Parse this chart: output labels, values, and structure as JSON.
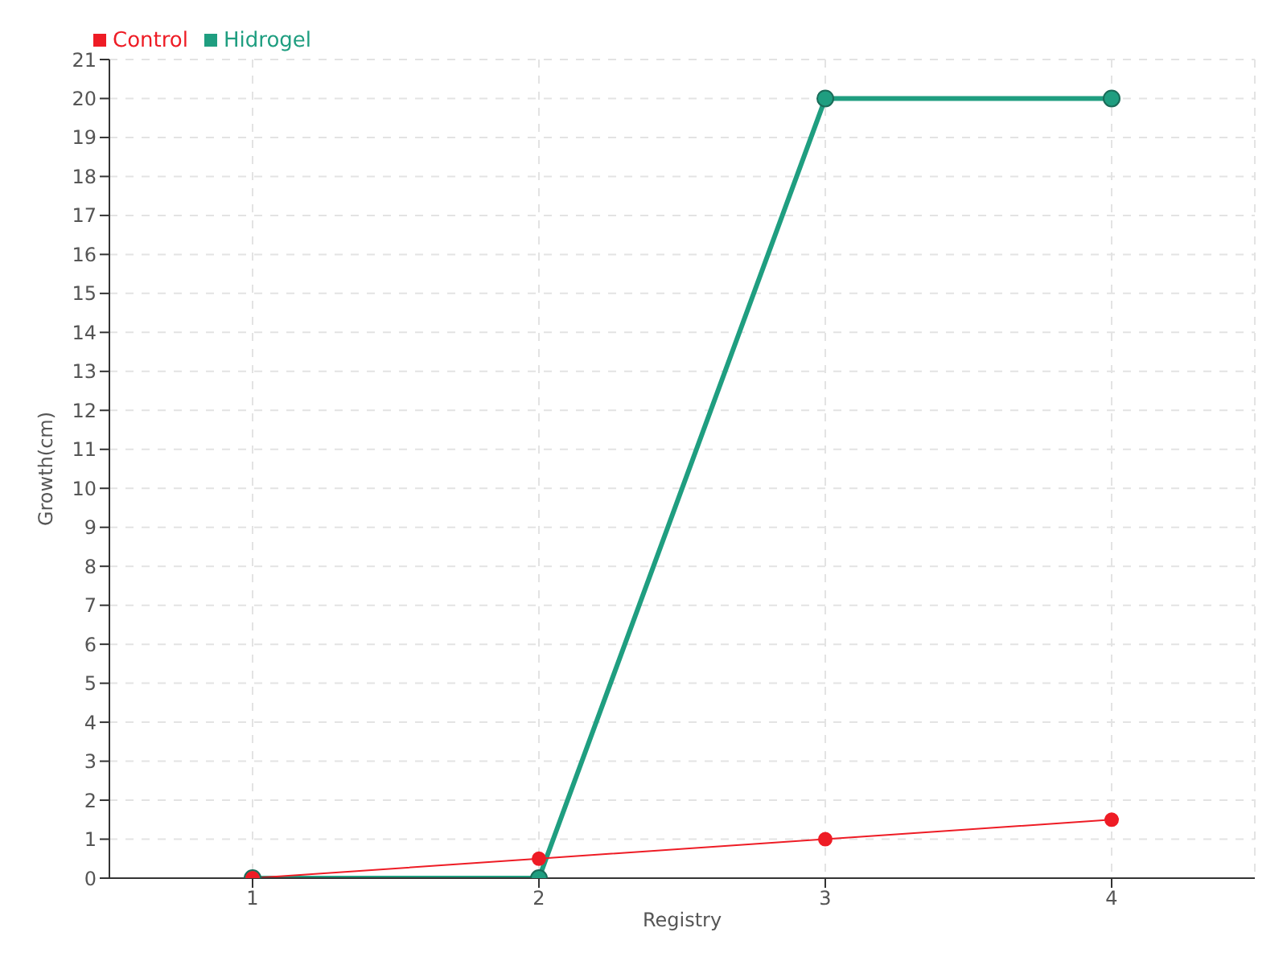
{
  "chart_data": {
    "type": "line",
    "xlabel": "Registry",
    "ylabel": "Growth(cm)",
    "categories": [
      "1",
      "2",
      "3",
      "4"
    ],
    "series": [
      {
        "name": "Hidrogel",
        "color": "#1f9e80",
        "values": [
          0,
          0,
          20,
          20
        ]
      },
      {
        "name": "Control",
        "color": "#ee1c25",
        "values": [
          0,
          0.5,
          1,
          1.5
        ]
      }
    ],
    "ylim": [
      0,
      21
    ],
    "yticks": [
      0,
      1,
      2,
      3,
      4,
      5,
      6,
      7,
      8,
      9,
      10,
      11,
      12,
      13,
      14,
      15,
      16,
      17,
      18,
      19,
      20,
      21
    ],
    "grid": true,
    "legend": "top left",
    "marker": "circle",
    "line_style": "solid"
  }
}
